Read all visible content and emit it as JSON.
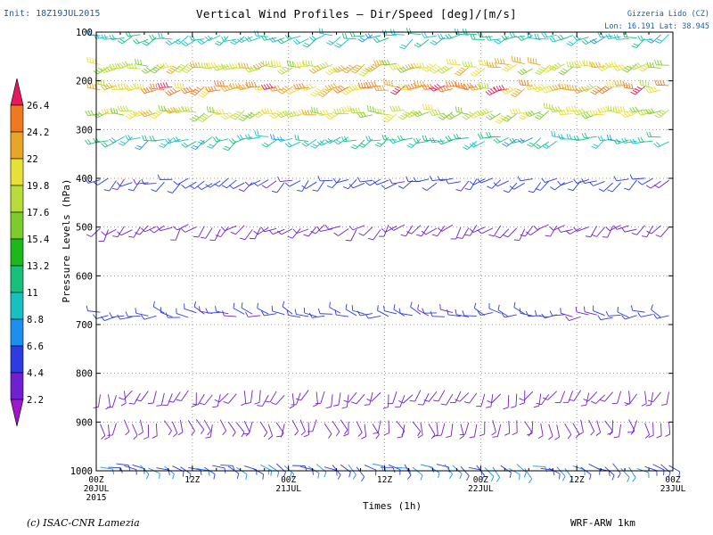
{
  "header": {
    "init_text": "Init: 18Z19JUL2015",
    "title": "Vertical Wind Profiles – Dir/Speed [deg]/[m/s]",
    "location_name": "Gizzeria Lido (CZ)",
    "location_coords": "Lon: 16.191  Lat: 38.945"
  },
  "footer": {
    "credit": "(c) ISAC-CNR Lamezia",
    "model": "WRF-ARW 1km"
  },
  "chart_data": {
    "type": "wind-barb time-height",
    "title": "Vertical Wind Profiles – Dir/Speed [deg]/[m/s]",
    "xlabel": "Times (1h)",
    "ylabel": "Pressure Levels (hPa)",
    "y_ticks": [
      100,
      200,
      300,
      400,
      500,
      600,
      700,
      800,
      900,
      1000
    ],
    "y_range": [
      100,
      1000
    ],
    "grid": true,
    "x_ticks": [
      {
        "hour": 0,
        "line1": "00Z",
        "line2": "20JUL",
        "line3": "2015"
      },
      {
        "hour": 12,
        "line1": "12Z",
        "line2": "",
        "line3": ""
      },
      {
        "hour": 24,
        "line1": "00Z",
        "line2": "21JUL",
        "line3": ""
      },
      {
        "hour": 36,
        "line1": "12Z",
        "line2": "",
        "line3": ""
      },
      {
        "hour": 48,
        "line1": "00Z",
        "line2": "22JUL",
        "line3": ""
      },
      {
        "hour": 60,
        "line1": "12Z",
        "line2": "",
        "line3": ""
      },
      {
        "hour": 72,
        "line1": "00Z",
        "line2": "23JUL",
        "line3": ""
      }
    ],
    "x_range_hours": [
      0,
      72
    ],
    "colorbar": {
      "labels": [
        "26.4",
        "24.2",
        "22",
        "19.8",
        "17.6",
        "15.4",
        "13.2",
        "11",
        "8.8",
        "6.6",
        "4.4",
        "2.2"
      ],
      "colors": [
        "#e8185e",
        "#f07820",
        "#e8a628",
        "#e8e03a",
        "#b8dc3a",
        "#7ccc2c",
        "#1cb81c",
        "#18c07c",
        "#18c0c0",
        "#1c90f0",
        "#2c3ce0",
        "#7020d0",
        "#9c18c8"
      ]
    },
    "profiles": [
      {
        "pressure": 110,
        "speed": 10.5,
        "dir": 250
      },
      {
        "pressure": 170,
        "speed": 19.8,
        "dir": 255
      },
      {
        "pressure": 215,
        "speed": 23.0,
        "dir": 255
      },
      {
        "pressure": 265,
        "speed": 19.0,
        "dir": 255
      },
      {
        "pressure": 320,
        "speed": 10.5,
        "dir": 250
      },
      {
        "pressure": 405,
        "speed": 5.0,
        "dir": 240
      },
      {
        "pressure": 500,
        "speed": 3.5,
        "dir": 230
      },
      {
        "pressure": 680,
        "speed": 5.0,
        "dir": 280
      },
      {
        "pressure": 840,
        "speed": 3.5,
        "dir": 200
      },
      {
        "pressure": 900,
        "speed": 3.0,
        "dir": 170
      },
      {
        "pressure": 990,
        "speed": 6.5,
        "dir": 120
      }
    ]
  }
}
